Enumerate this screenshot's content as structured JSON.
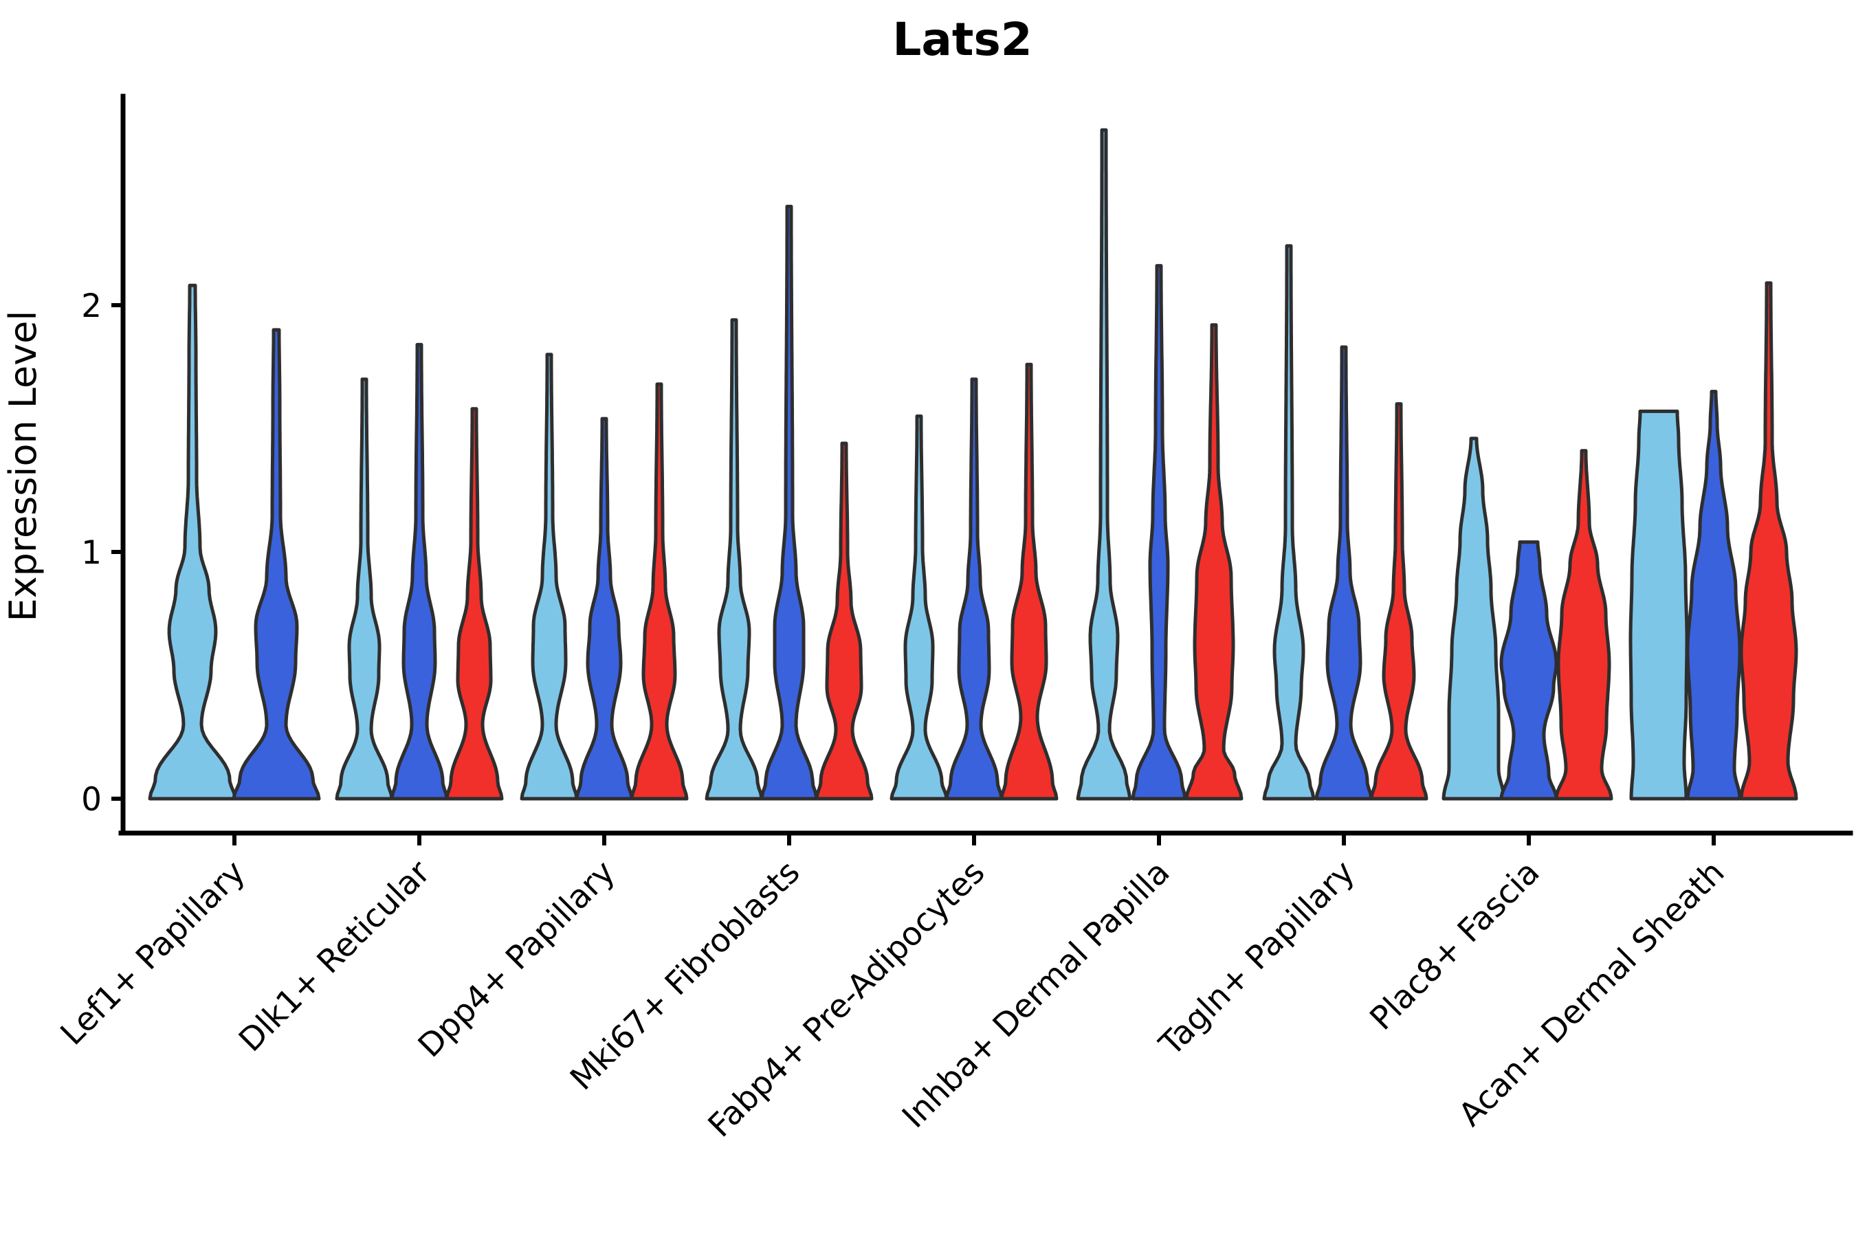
{
  "figure": {
    "title": "Lats2",
    "ylabel": "Expression Level",
    "background_color": "#ffffff",
    "axis_color": "#000000",
    "violin_outline_color": "#2e2e2e"
  },
  "chart_data": {
    "type": "violin",
    "title": "Lats2",
    "xlabel": "",
    "ylabel": "Expression Level",
    "ylim": [
      0,
      2.85
    ],
    "yticks": [
      0,
      1,
      2
    ],
    "grid": false,
    "legend": "none",
    "x_tick_rotation_deg": 45,
    "categories": [
      "Lef1+ Papillary",
      "Dlk1+ Reticular",
      "Dpp4+ Papillary",
      "Mki67+ Fibroblasts",
      "Fabp4+ Pre-Adipocytes",
      "Inhba+ Dermal Papilla",
      "Tagln+ Papillary",
      "Plac8+ Fascia",
      "Acan+ Dermal Sheath"
    ],
    "series": [
      {
        "name": "light-blue",
        "color": "#7EC6E8",
        "max_expression": [
          2.08,
          1.7,
          1.8,
          1.94,
          1.55,
          2.71,
          2.24,
          1.46,
          1.57
        ]
      },
      {
        "name": "dark-blue",
        "color": "#3A62DC",
        "max_expression": [
          1.9,
          1.84,
          1.54,
          2.4,
          1.7,
          2.16,
          1.83,
          1.04,
          1.65
        ]
      },
      {
        "name": "red",
        "color": "#F1302B",
        "max_expression": [
          null,
          1.58,
          1.68,
          1.44,
          1.76,
          1.92,
          1.6,
          1.41,
          2.09
        ]
      }
    ],
    "violins": [
      {
        "c": 0,
        "s": 0,
        "max": 2.08,
        "w": [
          [
            0,
            62
          ],
          [
            0.08,
            54
          ],
          [
            0.3,
            13
          ],
          [
            0.52,
            27
          ],
          [
            0.68,
            34
          ],
          [
            0.85,
            24
          ],
          [
            1.02,
            11
          ],
          [
            1.3,
            6
          ],
          [
            1.8,
            5
          ],
          [
            2.08,
            4
          ]
        ]
      },
      {
        "c": 0,
        "s": 1,
        "max": 1.9,
        "w": [
          [
            0,
            62
          ],
          [
            0.08,
            53
          ],
          [
            0.3,
            14
          ],
          [
            0.55,
            28
          ],
          [
            0.7,
            30
          ],
          [
            0.9,
            14
          ],
          [
            1.15,
            6
          ],
          [
            1.6,
            5
          ],
          [
            1.9,
            4
          ]
        ]
      },
      {
        "c": 1,
        "s": 0,
        "max": 1.7,
        "w": [
          [
            0,
            40
          ],
          [
            0.07,
            34
          ],
          [
            0.28,
            10
          ],
          [
            0.5,
            21
          ],
          [
            0.62,
            22
          ],
          [
            0.82,
            10
          ],
          [
            1.05,
            5
          ],
          [
            1.7,
            3
          ]
        ]
      },
      {
        "c": 1,
        "s": 1,
        "max": 1.84,
        "w": [
          [
            0,
            40
          ],
          [
            0.07,
            34
          ],
          [
            0.3,
            11
          ],
          [
            0.55,
            23
          ],
          [
            0.68,
            22
          ],
          [
            0.9,
            10
          ],
          [
            1.15,
            5
          ],
          [
            1.84,
            3
          ]
        ]
      },
      {
        "c": 1,
        "s": 2,
        "max": 1.58,
        "w": [
          [
            0,
            40
          ],
          [
            0.07,
            34
          ],
          [
            0.3,
            12
          ],
          [
            0.48,
            24
          ],
          [
            0.62,
            23
          ],
          [
            0.82,
            10
          ],
          [
            1.05,
            5
          ],
          [
            1.58,
            3
          ]
        ]
      },
      {
        "c": 2,
        "s": 0,
        "max": 1.8,
        "w": [
          [
            0,
            40
          ],
          [
            0.07,
            34
          ],
          [
            0.3,
            10
          ],
          [
            0.55,
            24
          ],
          [
            0.7,
            23
          ],
          [
            0.9,
            10
          ],
          [
            1.15,
            5
          ],
          [
            1.8,
            3
          ]
        ]
      },
      {
        "c": 2,
        "s": 1,
        "max": 1.54,
        "w": [
          [
            0,
            40
          ],
          [
            0.07,
            34
          ],
          [
            0.3,
            11
          ],
          [
            0.55,
            24
          ],
          [
            0.7,
            21
          ],
          [
            0.9,
            9
          ],
          [
            1.1,
            5
          ],
          [
            1.54,
            3
          ]
        ]
      },
      {
        "c": 2,
        "s": 2,
        "max": 1.68,
        "w": [
          [
            0,
            40
          ],
          [
            0.07,
            34
          ],
          [
            0.3,
            11
          ],
          [
            0.5,
            23
          ],
          [
            0.66,
            21
          ],
          [
            0.86,
            9
          ],
          [
            1.08,
            5
          ],
          [
            1.68,
            3
          ]
        ]
      },
      {
        "c": 3,
        "s": 0,
        "max": 1.94,
        "w": [
          [
            0,
            40
          ],
          [
            0.07,
            34
          ],
          [
            0.28,
            9
          ],
          [
            0.52,
            20
          ],
          [
            0.68,
            22
          ],
          [
            0.88,
            9
          ],
          [
            1.1,
            5
          ],
          [
            1.94,
            3
          ]
        ]
      },
      {
        "c": 3,
        "s": 1,
        "max": 2.4,
        "w": [
          [
            0,
            40
          ],
          [
            0.07,
            34
          ],
          [
            0.3,
            10
          ],
          [
            0.55,
            21
          ],
          [
            0.7,
            21
          ],
          [
            0.92,
            10
          ],
          [
            1.15,
            5
          ],
          [
            2.4,
            3
          ]
        ]
      },
      {
        "c": 3,
        "s": 2,
        "max": 1.44,
        "w": [
          [
            0,
            40
          ],
          [
            0.07,
            34
          ],
          [
            0.28,
            12
          ],
          [
            0.45,
            25
          ],
          [
            0.6,
            24
          ],
          [
            0.8,
            10
          ],
          [
            1.0,
            5
          ],
          [
            1.44,
            3
          ]
        ]
      },
      {
        "c": 4,
        "s": 0,
        "max": 1.55,
        "w": [
          [
            0,
            40
          ],
          [
            0.07,
            33
          ],
          [
            0.28,
            9
          ],
          [
            0.48,
            19
          ],
          [
            0.62,
            20
          ],
          [
            0.82,
            9
          ],
          [
            1.02,
            5
          ],
          [
            1.55,
            3
          ]
        ]
      },
      {
        "c": 4,
        "s": 1,
        "max": 1.7,
        "w": [
          [
            0,
            40
          ],
          [
            0.07,
            34
          ],
          [
            0.3,
            10
          ],
          [
            0.52,
            22
          ],
          [
            0.68,
            21
          ],
          [
            0.88,
            9
          ],
          [
            1.08,
            5
          ],
          [
            1.7,
            3
          ]
        ]
      },
      {
        "c": 4,
        "s": 2,
        "max": 1.76,
        "w": [
          [
            0,
            40
          ],
          [
            0.07,
            34
          ],
          [
            0.33,
            12
          ],
          [
            0.55,
            25
          ],
          [
            0.7,
            24
          ],
          [
            0.92,
            10
          ],
          [
            1.12,
            5
          ],
          [
            1.76,
            3
          ]
        ]
      },
      {
        "c": 5,
        "s": 0,
        "max": 2.71,
        "w": [
          [
            0,
            38
          ],
          [
            0.07,
            33
          ],
          [
            0.28,
            8
          ],
          [
            0.5,
            18
          ],
          [
            0.66,
            20
          ],
          [
            0.88,
            9
          ],
          [
            1.15,
            5
          ],
          [
            2.71,
            3
          ]
        ]
      },
      {
        "c": 5,
        "s": 1,
        "max": 2.16,
        "w": [
          [
            0,
            38
          ],
          [
            0.07,
            33
          ],
          [
            0.28,
            8
          ],
          [
            0.6,
            10
          ],
          [
            0.95,
            13
          ],
          [
            1.15,
            9
          ],
          [
            1.5,
            5
          ],
          [
            2.16,
            3
          ]
        ]
      },
      {
        "c": 5,
        "s": 2,
        "max": 1.92,
        "w": [
          [
            0,
            40
          ],
          [
            0.1,
            30
          ],
          [
            0.2,
            14
          ],
          [
            0.45,
            26
          ],
          [
            0.62,
            28
          ],
          [
            0.9,
            25
          ],
          [
            1.12,
            12
          ],
          [
            1.35,
            6
          ],
          [
            1.92,
            3
          ]
        ]
      },
      {
        "c": 6,
        "s": 0,
        "max": 2.24,
        "w": [
          [
            0,
            36
          ],
          [
            0.07,
            30
          ],
          [
            0.22,
            10
          ],
          [
            0.45,
            18
          ],
          [
            0.6,
            21
          ],
          [
            0.85,
            10
          ],
          [
            1.1,
            5
          ],
          [
            2.24,
            3
          ]
        ]
      },
      {
        "c": 6,
        "s": 1,
        "max": 1.83,
        "w": [
          [
            0,
            40
          ],
          [
            0.07,
            34
          ],
          [
            0.3,
            10
          ],
          [
            0.55,
            24
          ],
          [
            0.7,
            22
          ],
          [
            0.92,
            9
          ],
          [
            1.12,
            5
          ],
          [
            1.83,
            3
          ]
        ]
      },
      {
        "c": 6,
        "s": 2,
        "max": 1.6,
        "w": [
          [
            0,
            40
          ],
          [
            0.07,
            34
          ],
          [
            0.28,
            10
          ],
          [
            0.5,
            22
          ],
          [
            0.65,
            19
          ],
          [
            0.85,
            8
          ],
          [
            1.05,
            5
          ],
          [
            1.6,
            3
          ]
        ]
      },
      {
        "c": 7,
        "s": 0,
        "max": 1.46,
        "w": [
          [
            0,
            44
          ],
          [
            0.12,
            36
          ],
          [
            0.35,
            36
          ],
          [
            0.6,
            32
          ],
          [
            0.85,
            25
          ],
          [
            1.05,
            20
          ],
          [
            1.25,
            13
          ],
          [
            1.46,
            4
          ]
        ]
      },
      {
        "c": 7,
        "s": 1,
        "max": 1.04,
        "w": [
          [
            0,
            40
          ],
          [
            0.1,
            29
          ],
          [
            0.26,
            22
          ],
          [
            0.45,
            36
          ],
          [
            0.55,
            40
          ],
          [
            0.75,
            26
          ],
          [
            0.95,
            16
          ],
          [
            1.04,
            13
          ]
        ]
      },
      {
        "c": 7,
        "s": 2,
        "max": 1.41,
        "w": [
          [
            0,
            40
          ],
          [
            0.12,
            26
          ],
          [
            0.3,
            33
          ],
          [
            0.55,
            37
          ],
          [
            0.75,
            32
          ],
          [
            0.95,
            20
          ],
          [
            1.12,
            8
          ],
          [
            1.41,
            3
          ]
        ]
      },
      {
        "c": 8,
        "s": 0,
        "max": 1.57,
        "w": [
          [
            0,
            40
          ],
          [
            0.15,
            37
          ],
          [
            0.4,
            40
          ],
          [
            0.65,
            41
          ],
          [
            0.9,
            39
          ],
          [
            1.2,
            34
          ],
          [
            1.45,
            29
          ],
          [
            1.57,
            27
          ]
        ]
      },
      {
        "c": 8,
        "s": 1,
        "max": 1.65,
        "w": [
          [
            0,
            38
          ],
          [
            0.12,
            30
          ],
          [
            0.35,
            34
          ],
          [
            0.6,
            38
          ],
          [
            0.85,
            32
          ],
          [
            1.1,
            20
          ],
          [
            1.35,
            10
          ],
          [
            1.52,
            5
          ],
          [
            1.65,
            3
          ]
        ]
      },
      {
        "c": 8,
        "s": 2,
        "max": 2.09,
        "w": [
          [
            0,
            40
          ],
          [
            0.15,
            28
          ],
          [
            0.4,
            36
          ],
          [
            0.6,
            40
          ],
          [
            0.8,
            34
          ],
          [
            1.0,
            26
          ],
          [
            1.2,
            12
          ],
          [
            1.45,
            5
          ],
          [
            2.09,
            3
          ]
        ]
      }
    ]
  }
}
